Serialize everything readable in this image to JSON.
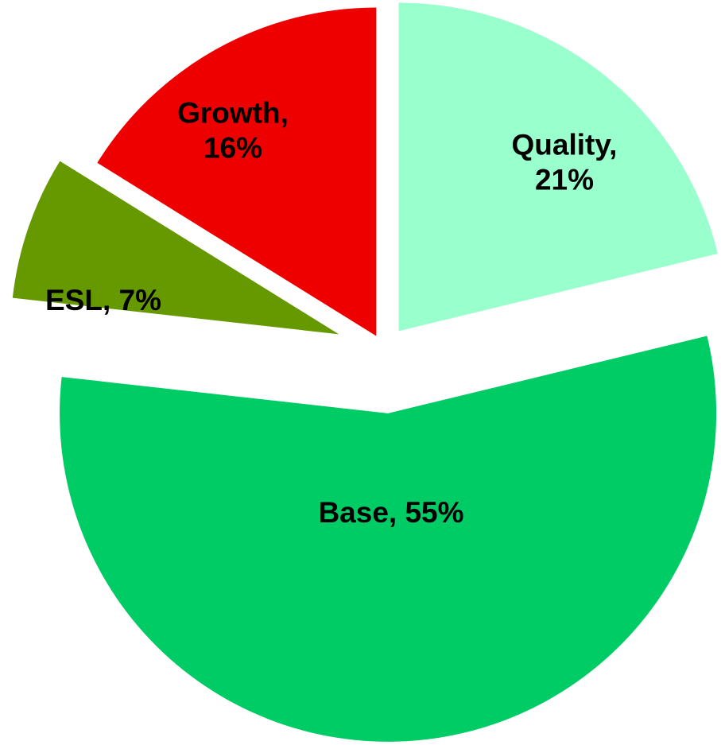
{
  "chart_data": {
    "type": "pie",
    "categories": [
      "Quality",
      "Base",
      "ESL",
      "Growth"
    ],
    "values": [
      21,
      55,
      7,
      16
    ],
    "value_labels": [
      "Quality, 21%",
      "Base, 55%",
      "ESL, 7%",
      "Growth, 16%"
    ],
    "colors": [
      "#99ffcc",
      "#00cc66",
      "#669900",
      "#ee0000"
    ]
  }
}
